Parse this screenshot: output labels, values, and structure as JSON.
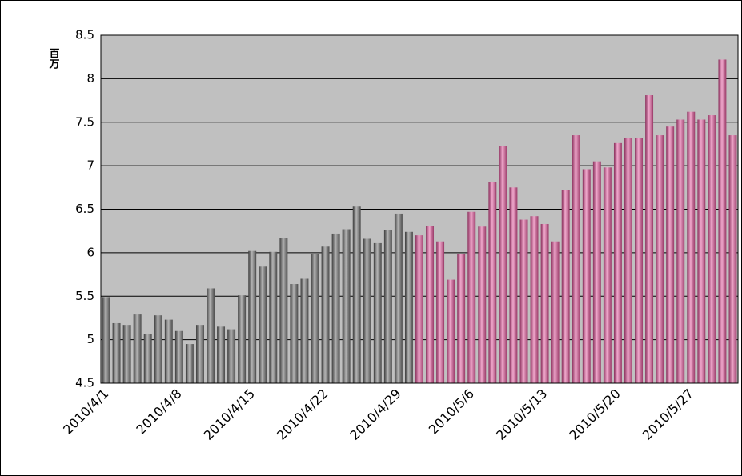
{
  "chart_data": {
    "type": "bar",
    "annotations": [
      "百万"
    ],
    "categories": [
      "2010/4/1",
      null,
      null,
      null,
      null,
      null,
      null,
      "2010/4/8",
      null,
      null,
      null,
      null,
      null,
      null,
      "2010/4/15",
      null,
      null,
      null,
      null,
      null,
      null,
      "2010/4/22",
      null,
      null,
      null,
      null,
      null,
      null,
      "2010/4/29",
      null,
      null,
      null,
      null,
      null,
      null,
      "2010/5/6",
      null,
      null,
      null,
      null,
      null,
      null,
      "2010/5/13",
      null,
      null,
      null,
      null,
      null,
      null,
      "2010/5/20",
      null,
      null,
      null,
      null,
      null,
      null,
      "2010/5/27",
      null,
      null,
      null,
      null
    ],
    "series": [
      {
        "color": "#6e6e6e",
        "values": [
          5.49,
          5.19,
          5.17,
          5.29,
          5.07,
          5.28,
          5.23,
          5.1,
          4.95,
          5.17,
          5.59,
          5.15,
          5.12,
          5.51,
          6.02,
          5.84,
          6.01,
          6.17,
          5.64,
          5.7,
          5.99,
          6.07,
          6.22,
          6.27,
          6.53,
          6.16,
          6.11,
          6.26,
          6.45,
          6.24,
          null,
          null,
          null,
          null,
          null,
          null,
          null,
          null,
          null,
          null,
          null,
          null,
          null,
          null,
          null,
          null,
          null,
          null,
          null,
          null,
          null,
          null,
          null,
          null,
          null,
          null,
          null,
          null,
          null,
          null,
          null
        ]
      },
      {
        "color": "#c8608f",
        "values": [
          null,
          null,
          null,
          null,
          null,
          null,
          null,
          null,
          null,
          null,
          null,
          null,
          null,
          null,
          null,
          null,
          null,
          null,
          null,
          null,
          null,
          null,
          null,
          null,
          null,
          null,
          null,
          null,
          null,
          null,
          6.2,
          6.31,
          6.13,
          5.69,
          5.99,
          6.47,
          6.3,
          6.81,
          7.23,
          6.75,
          6.38,
          6.42,
          6.33,
          6.13,
          6.72,
          7.35,
          6.96,
          7.05,
          6.98,
          7.26,
          7.32,
          7.32,
          7.81,
          7.35,
          7.45,
          7.53,
          7.62,
          7.53,
          7.58,
          8.22,
          7.35
        ]
      }
    ],
    "ylim": [
      4.5,
      8.5
    ],
    "yticks": [
      4.5,
      5,
      5.5,
      6,
      6.5,
      7,
      7.5,
      8,
      8.5
    ],
    "grid": true
  }
}
